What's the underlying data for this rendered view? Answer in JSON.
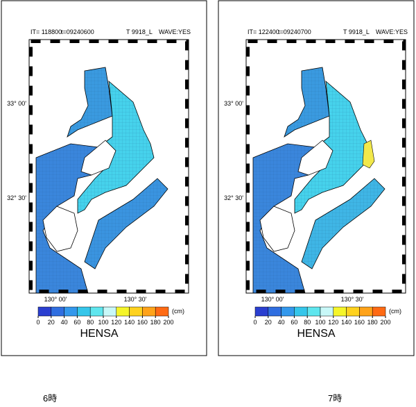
{
  "panels": [
    {
      "header": {
        "it": "IT=  118800",
        "time": "t=09240600",
        "case": "T 9918_L",
        "wave": "WAVE:YES"
      },
      "caption": "6時"
    },
    {
      "header": {
        "it": "IT=  122400",
        "time": "t=09240700",
        "case": "T 9918_L",
        "wave": "WAVE:YES"
      },
      "caption": "7時"
    }
  ],
  "map": {
    "lat_labels": [
      "33° 00'",
      "32° 30'"
    ],
    "lon_labels": [
      "130° 00'",
      "130° 30'"
    ]
  },
  "colorbar": {
    "lim": [
      0,
      200
    ],
    "ticks": [
      0,
      20,
      40,
      60,
      80,
      100,
      120,
      140,
      160,
      180,
      200
    ],
    "colors": [
      "#2a3fd0",
      "#2f6ee0",
      "#3398ec",
      "#35c6ea",
      "#5fe6ee",
      "#c8f8f8",
      "#f5f52a",
      "#ffd21e",
      "#ffa31a",
      "#ff6a14"
    ],
    "unit": "(cm)",
    "label": "HENSA"
  }
}
